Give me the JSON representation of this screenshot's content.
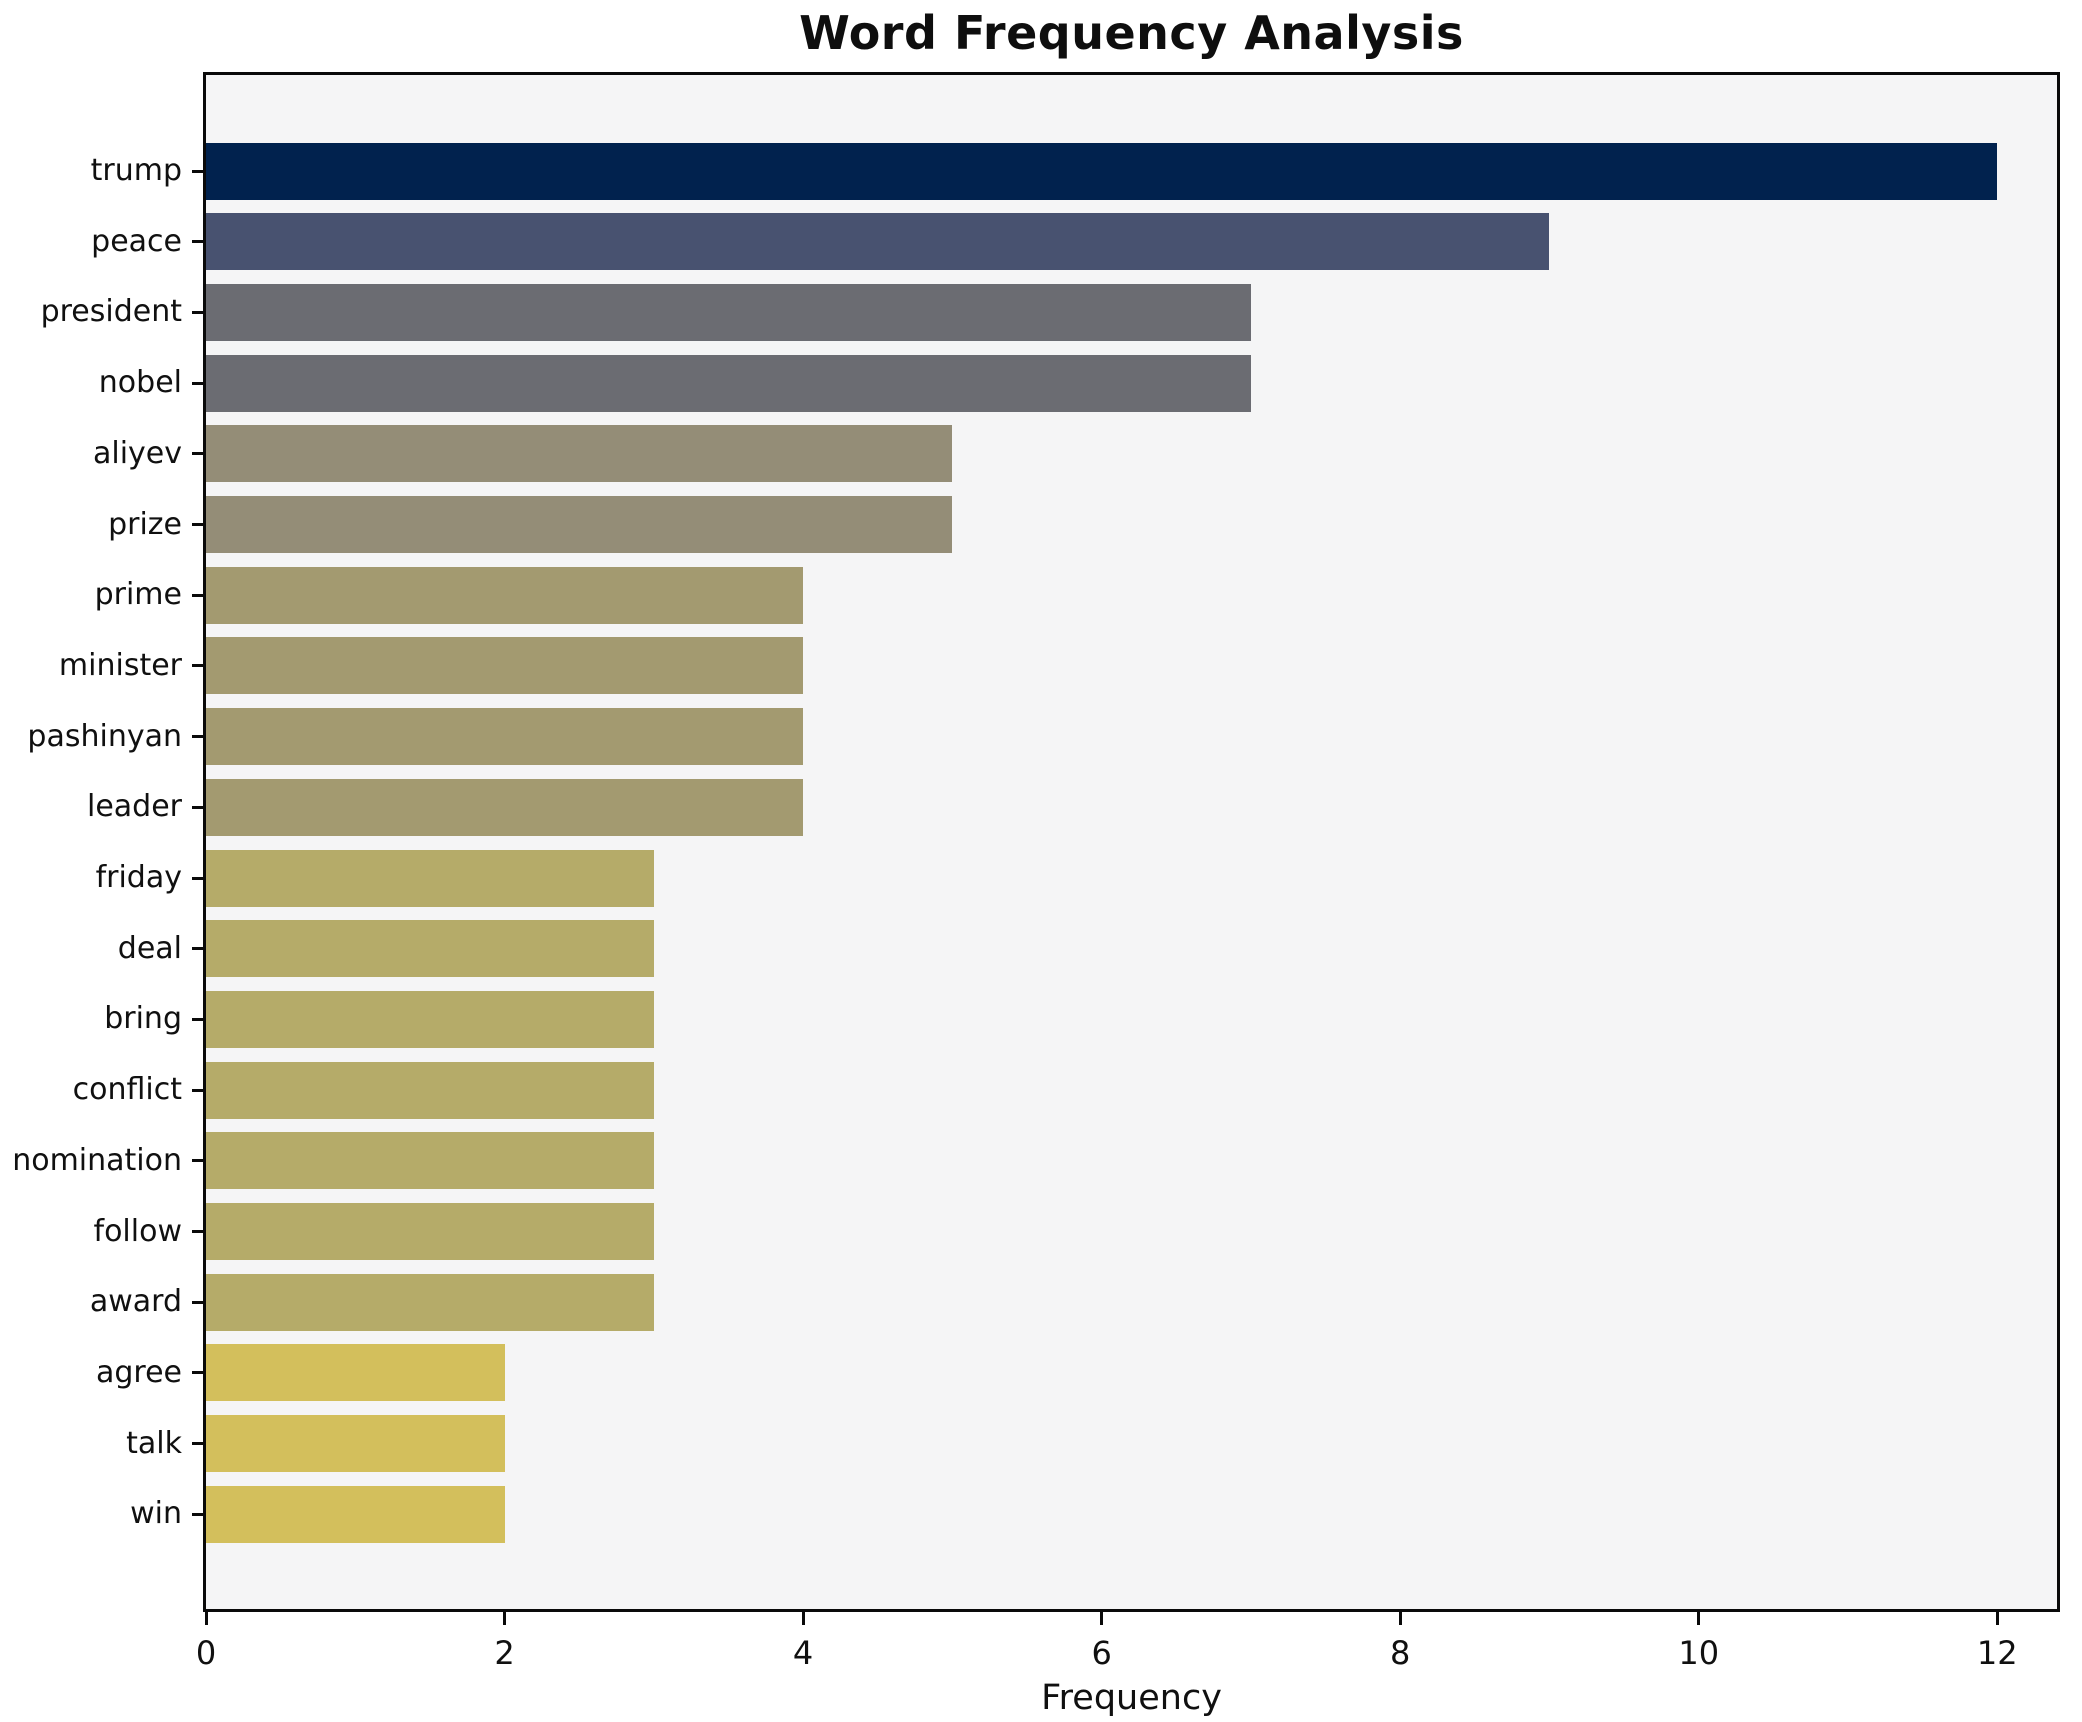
{
  "chart_data": {
    "type": "bar",
    "orientation": "horizontal",
    "title": "Word Frequency Analysis",
    "xlabel": "Frequency",
    "ylabel": "",
    "categories": [
      "trump",
      "peace",
      "president",
      "nobel",
      "aliyev",
      "prize",
      "prime",
      "minister",
      "pashinyan",
      "leader",
      "friday",
      "deal",
      "bring",
      "conflict",
      "nomination",
      "follow",
      "award",
      "agree",
      "talk",
      "win"
    ],
    "values": [
      12,
      9,
      7,
      7,
      5,
      5,
      4,
      4,
      4,
      4,
      3,
      3,
      3,
      3,
      3,
      3,
      3,
      2,
      2,
      2
    ],
    "bar_colors": [
      "#01224e",
      "#485270",
      "#6b6c72",
      "#6b6c72",
      "#948d77",
      "#948d77",
      "#a39a70",
      "#a39a70",
      "#a39a70",
      "#a39a70",
      "#b5ab69",
      "#b5ab69",
      "#b5ab69",
      "#b5ab69",
      "#b5ab69",
      "#b5ab69",
      "#b5ab69",
      "#d3bf5c",
      "#d3bf5c",
      "#d3bf5c"
    ],
    "xticks": [
      0,
      2,
      4,
      6,
      8,
      10,
      12
    ],
    "xlim": [
      0,
      12.4
    ],
    "grid": false,
    "legend_position": "none",
    "plot_background": "#f5f5f6",
    "page_background": "#ffffff",
    "spine_color": "#0a0a0a",
    "colormap": "cividis-reversed"
  }
}
